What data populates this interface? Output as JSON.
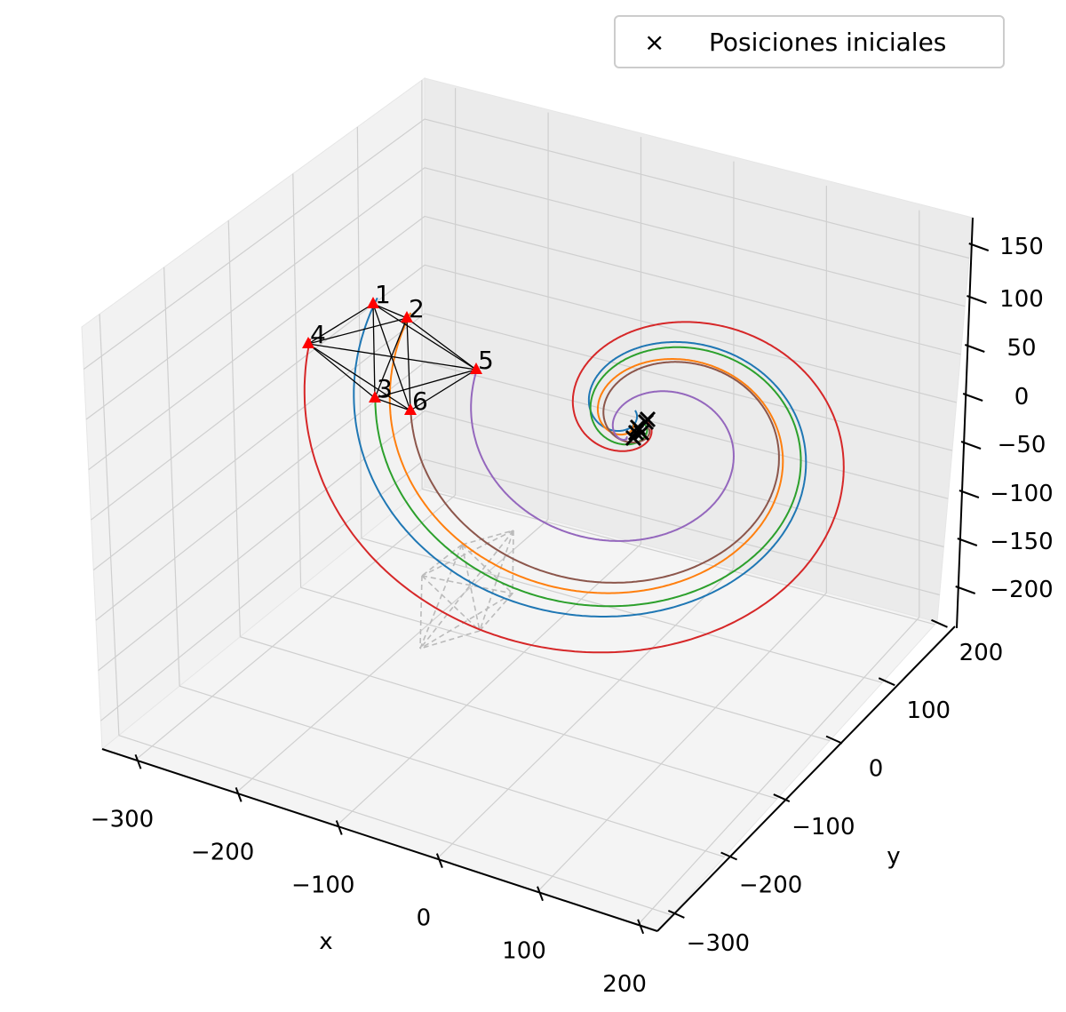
{
  "chart_data": {
    "type": "line3d",
    "xlabel": "x",
    "ylabel": "y",
    "zlabel": "",
    "xticks": [
      "−300",
      "−200",
      "−100",
      "0",
      "100",
      "200"
    ],
    "yticks": [
      "−300",
      "−200",
      "−100",
      "0",
      "100",
      "200"
    ],
    "zticks": [
      "−200",
      "−150",
      "−100",
      "−50",
      "0",
      "50",
      "100",
      "150"
    ],
    "legend": {
      "marker": "×",
      "label": "Posiciones iniciales",
      "position": "top-right"
    },
    "grid": true,
    "point_labels": [
      "1",
      "2",
      "3",
      "4",
      "5",
      "6"
    ],
    "series_colors": [
      "#1f77b4",
      "#ff7f0e",
      "#2ca02c",
      "#d62728",
      "#9467bd",
      "#8c564b"
    ],
    "formation_marker_color": "#ff0000",
    "initial_marker_color": "#000000",
    "shadow_color": "#bbbbbb"
  }
}
